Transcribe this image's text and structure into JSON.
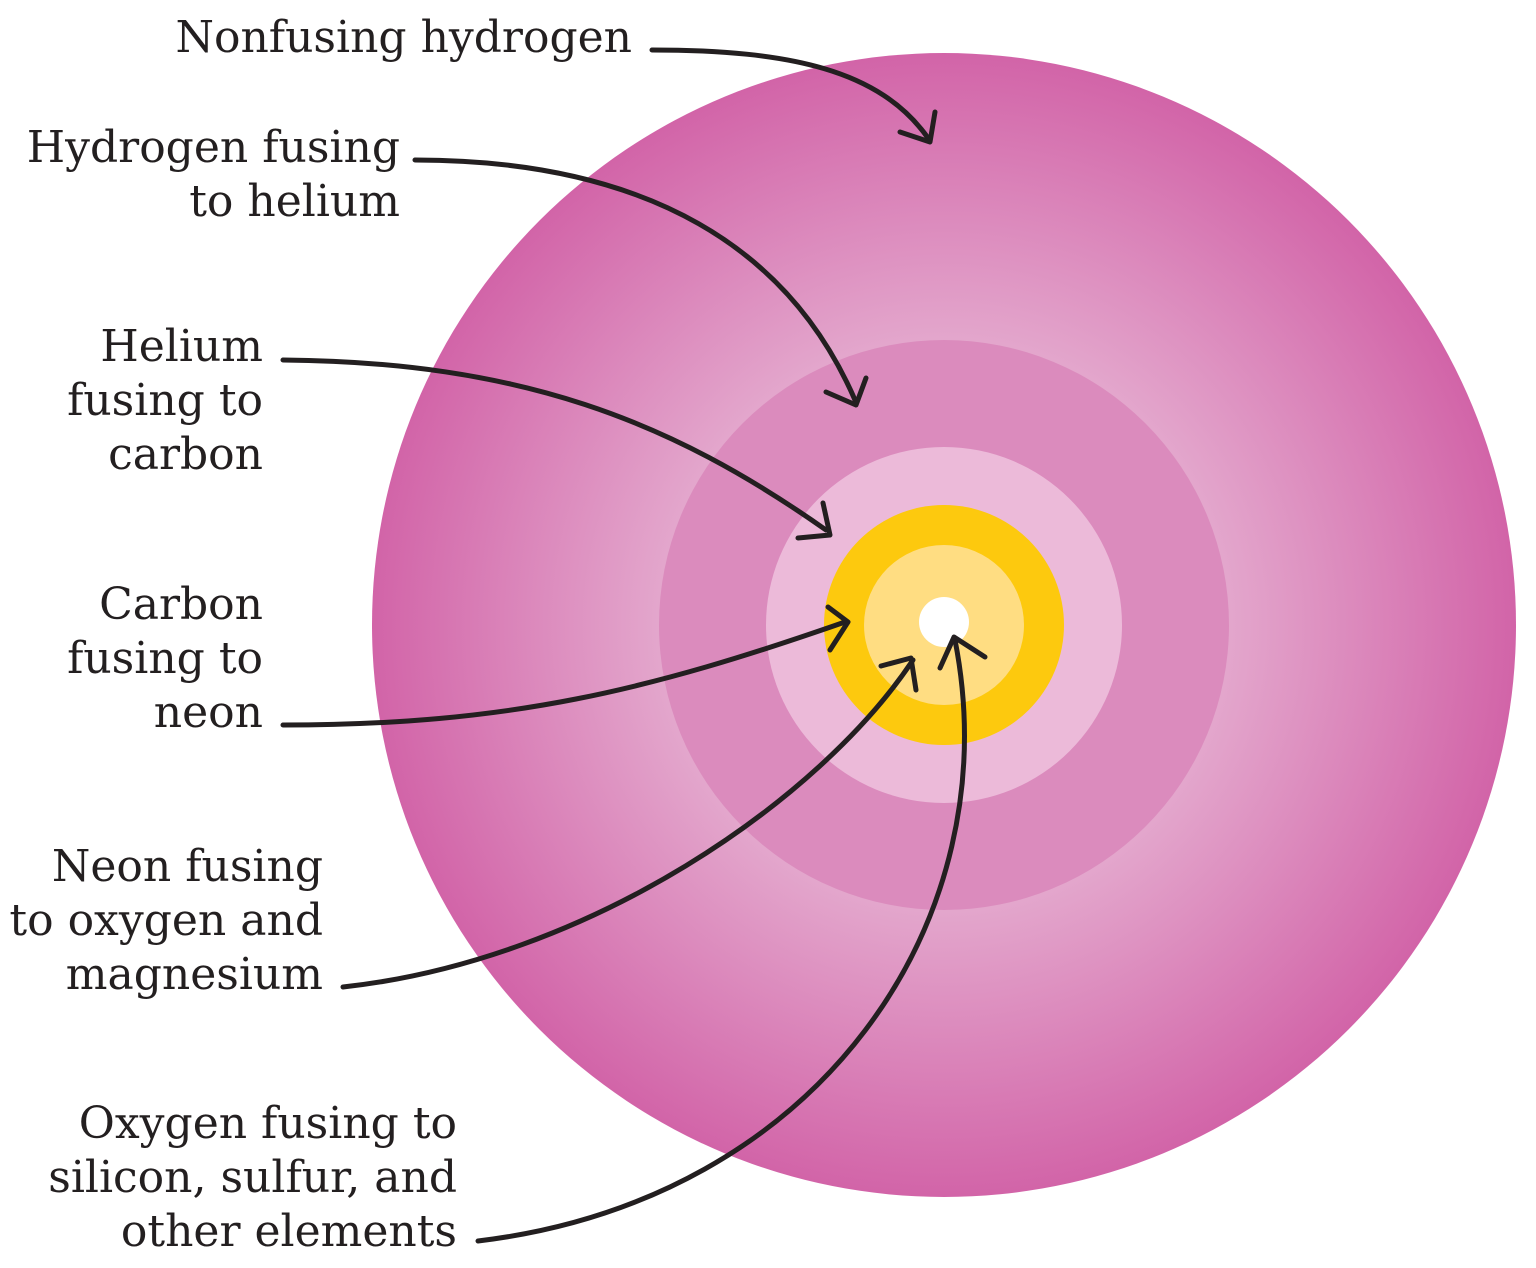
{
  "colors": {
    "envelope_edge": "#d264a8",
    "envelope_mid": "#e5a9cf",
    "hydrogen_shell": "#db8bbd",
    "helium_shell": "#ecbad9",
    "carbon_shell": "#fdc90e",
    "neon_shell": "#ffdd82",
    "oxygen_core": "#ffffff",
    "text": "#231f20"
  },
  "labels": {
    "nonfusing_hydrogen": [
      "Nonfusing hydrogen"
    ],
    "hydrogen_fusing": [
      "Hydrogen fusing",
      "to helium"
    ],
    "helium_fusing": [
      "Helium",
      "fusing to",
      "carbon"
    ],
    "carbon_fusing": [
      "Carbon",
      "fusing to",
      "neon"
    ],
    "neon_fusing": [
      "Neon fusing",
      "to oxygen and",
      "magnesium"
    ],
    "oxygen_fusing": [
      "Oxygen fusing to",
      "silicon, sulfur, and",
      "other elements"
    ]
  }
}
